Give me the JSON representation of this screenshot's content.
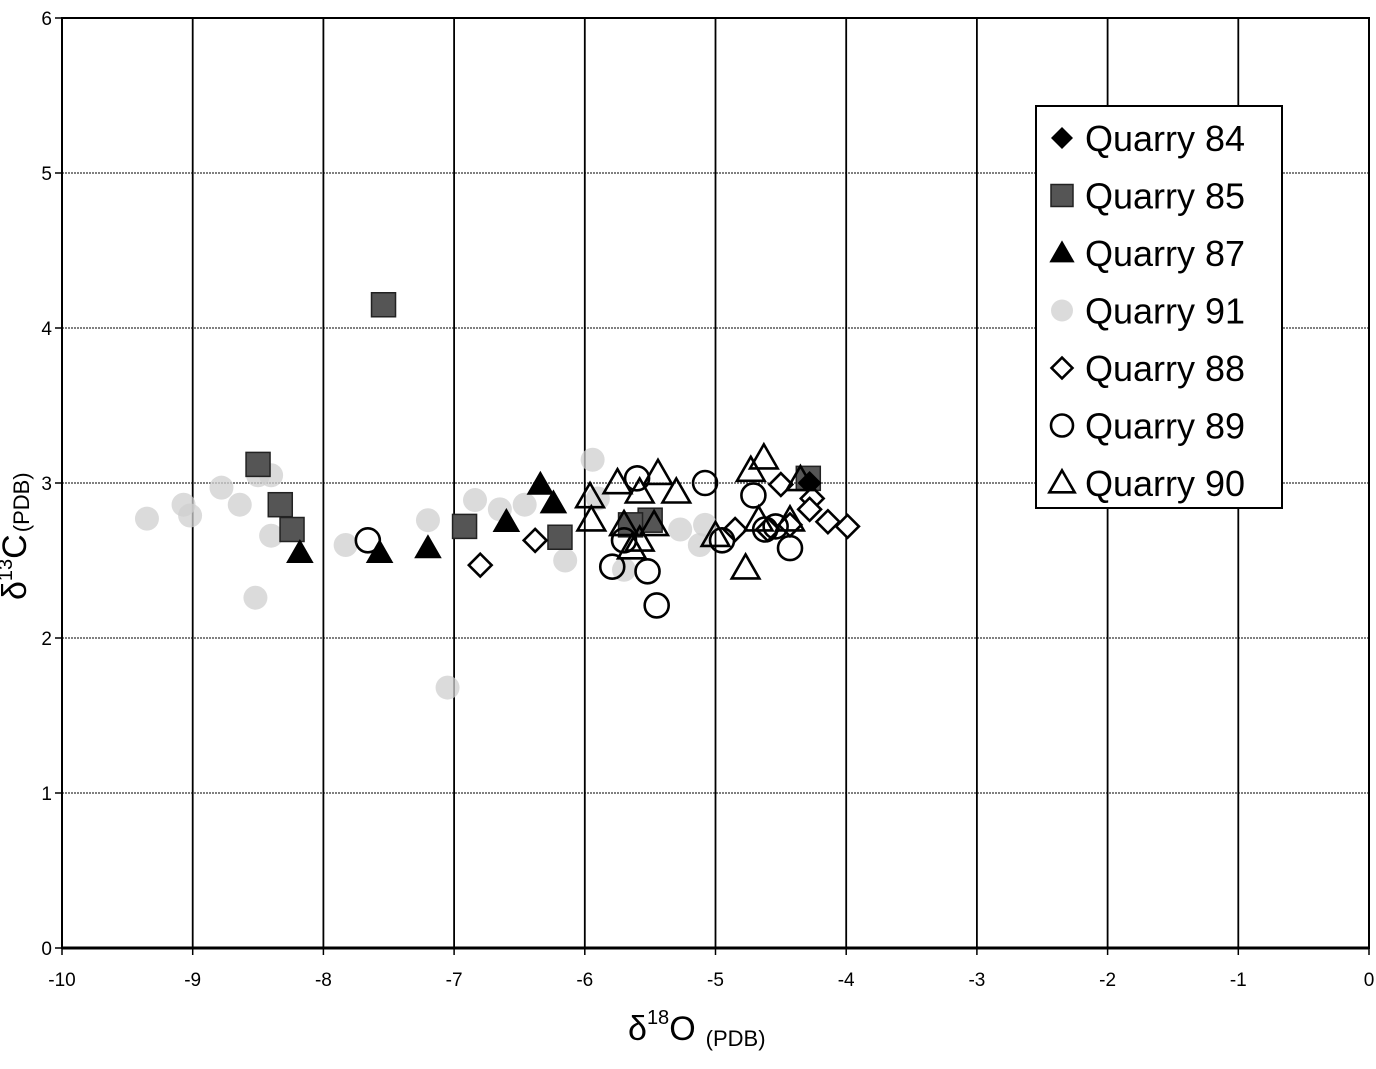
{
  "chart_data": {
    "type": "scatter",
    "title": "",
    "xlabel": {
      "main": "δ",
      "sup": "18",
      "letter": "O",
      "sub": "(PDB)"
    },
    "ylabel": {
      "main": "δ",
      "sup": "13",
      "letter": "C",
      "sub": "(PDB)"
    },
    "xlim": [
      -10,
      0
    ],
    "ylim": [
      0,
      6
    ],
    "xticks": [
      -10,
      -9,
      -8,
      -7,
      -6,
      -5,
      -4,
      -3,
      -2,
      -1,
      0
    ],
    "yticks": [
      0,
      1,
      2,
      3,
      4,
      5,
      6
    ],
    "grid": true,
    "legend_position": "top-right",
    "series": [
      {
        "name": "Quarry 84",
        "marker": "diamond-filled",
        "color": "#000000",
        "points": [
          [
            -4.28,
            3.0
          ]
        ]
      },
      {
        "name": "Quarry 85",
        "marker": "square-filled",
        "color": "#555555",
        "points": [
          [
            -7.54,
            4.15
          ],
          [
            -8.5,
            3.12
          ],
          [
            -8.33,
            2.86
          ],
          [
            -8.24,
            2.7
          ],
          [
            -6.92,
            2.72
          ],
          [
            -6.19,
            2.65
          ],
          [
            -5.5,
            2.76
          ],
          [
            -5.65,
            2.73
          ],
          [
            -4.29,
            3.03
          ]
        ]
      },
      {
        "name": "Quarry 87",
        "marker": "triangle-filled",
        "color": "#000000",
        "points": [
          [
            -8.18,
            2.55
          ],
          [
            -7.57,
            2.55
          ],
          [
            -7.2,
            2.58
          ],
          [
            -6.6,
            2.75
          ],
          [
            -6.34,
            2.99
          ],
          [
            -6.24,
            2.87
          ]
        ]
      },
      {
        "name": "Quarry 91",
        "marker": "circle-gray",
        "color": "#bbbbbb",
        "points": [
          [
            -9.35,
            2.77
          ],
          [
            -9.07,
            2.86
          ],
          [
            -9.02,
            2.79
          ],
          [
            -8.78,
            2.97
          ],
          [
            -8.64,
            2.86
          ],
          [
            -8.5,
            3.05
          ],
          [
            -8.4,
            3.05
          ],
          [
            -8.4,
            2.66
          ],
          [
            -8.52,
            2.26
          ],
          [
            -7.83,
            2.6
          ],
          [
            -7.2,
            2.76
          ],
          [
            -7.05,
            1.68
          ],
          [
            -6.84,
            2.89
          ],
          [
            -6.65,
            2.83
          ],
          [
            -6.46,
            2.86
          ],
          [
            -6.15,
            2.5
          ],
          [
            -5.94,
            3.15
          ],
          [
            -5.9,
            2.9
          ],
          [
            -5.7,
            2.44
          ],
          [
            -5.27,
            2.7
          ],
          [
            -5.12,
            2.6
          ],
          [
            -5.08,
            2.73
          ]
        ]
      },
      {
        "name": "Quarry 88",
        "marker": "diamond-open",
        "color": "#000000",
        "points": [
          [
            -6.8,
            2.47
          ],
          [
            -6.38,
            2.63
          ],
          [
            -4.85,
            2.7
          ],
          [
            -4.5,
            2.99
          ],
          [
            -4.26,
            2.9
          ],
          [
            -4.28,
            2.83
          ],
          [
            -4.14,
            2.75
          ],
          [
            -3.99,
            2.72
          ],
          [
            -4.43,
            2.73
          ],
          [
            -4.6,
            2.7
          ]
        ]
      },
      {
        "name": "Quarry 89",
        "marker": "circle-open",
        "color": "#000000",
        "points": [
          [
            -7.66,
            2.63
          ],
          [
            -5.79,
            2.46
          ],
          [
            -5.6,
            3.03
          ],
          [
            -5.52,
            2.43
          ],
          [
            -5.45,
            2.21
          ],
          [
            -5.08,
            3.0
          ],
          [
            -4.95,
            2.63
          ],
          [
            -4.71,
            2.92
          ],
          [
            -4.62,
            2.7
          ],
          [
            -4.54,
            2.72
          ],
          [
            -4.43,
            2.58
          ],
          [
            -5.7,
            2.63
          ]
        ]
      },
      {
        "name": "Quarry 90",
        "marker": "triangle-open",
        "color": "#000000",
        "points": [
          [
            -5.96,
            2.91
          ],
          [
            -5.75,
            3.0
          ],
          [
            -5.58,
            2.94
          ],
          [
            -5.44,
            3.06
          ],
          [
            -5.3,
            2.94
          ],
          [
            -5.95,
            2.76
          ],
          [
            -5.7,
            2.73
          ],
          [
            -5.64,
            2.58
          ],
          [
            -5.47,
            2.73
          ],
          [
            -5.0,
            2.66
          ],
          [
            -4.77,
            2.45
          ],
          [
            -4.73,
            3.08
          ],
          [
            -4.63,
            3.16
          ],
          [
            -4.67,
            2.76
          ],
          [
            -4.43,
            2.76
          ],
          [
            -4.35,
            3.02
          ],
          [
            -5.58,
            2.63
          ]
        ]
      }
    ]
  }
}
